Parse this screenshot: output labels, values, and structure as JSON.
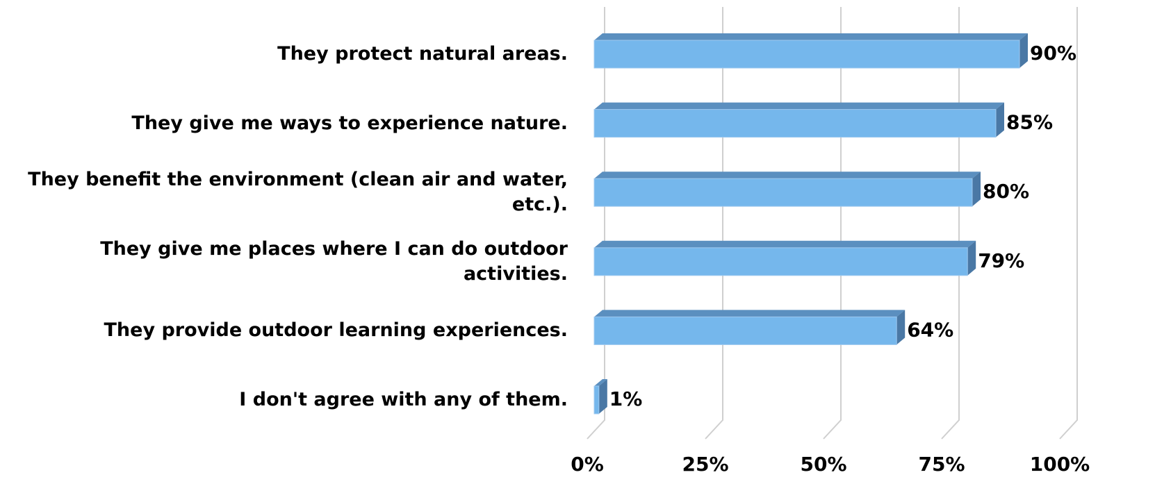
{
  "chart_data": {
    "type": "bar",
    "orientation": "horizontal",
    "categories": [
      "They protect natural areas.",
      "They give me ways to experience nature.",
      "They benefit the environment (clean air and water, etc.).",
      "They give me places where I can do outdoor activities.",
      "They provide outdoor learning experiences.",
      "I don't agree with any of them."
    ],
    "values": [
      90,
      85,
      80,
      79,
      64,
      1
    ],
    "value_labels": [
      "90%",
      "85%",
      "80%",
      "79%",
      "64%",
      "1%"
    ],
    "color": "#75b7ec",
    "xlim": [
      0,
      100
    ],
    "xticks": [
      {
        "value": 0,
        "label": "0%"
      },
      {
        "value": 25,
        "label": "25%"
      },
      {
        "value": 50,
        "label": "50%"
      },
      {
        "value": 75,
        "label": "75%"
      },
      {
        "value": 100,
        "label": "100%"
      }
    ],
    "grid": true
  }
}
